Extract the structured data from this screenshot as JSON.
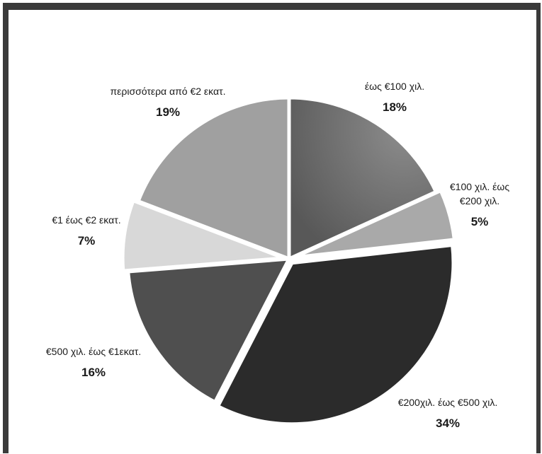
{
  "chart_data": {
    "type": "pie",
    "title": "",
    "start_angle_deg": 0,
    "direction": "clockwise",
    "slices": [
      {
        "label": "έως €100 χιλ.",
        "value": 18,
        "value_label": "18%",
        "color": "#6e6e6e",
        "explode": false
      },
      {
        "label": "€100 χιλ. έως €200 χιλ.",
        "value": 5,
        "value_label": "5%",
        "color": "#a9a9a9",
        "explode": true
      },
      {
        "label": "€200χιλ. έως €500 χιλ.",
        "value": 34,
        "value_label": "34%",
        "color": "#2b2b2b",
        "explode": true
      },
      {
        "label": "€500 χιλ. έως €1εκατ.",
        "value": 16,
        "value_label": "16%",
        "color": "#4f4f4f",
        "explode": false
      },
      {
        "label": "€1 έως €2 εκατ.",
        "value": 7,
        "value_label": "7%",
        "color": "#d8d8d8",
        "explode": true
      },
      {
        "label": "περισσότερα από €2 εκατ.",
        "value": 19,
        "value_label": "19%",
        "color": "#a0a0a0",
        "explode": false
      }
    ]
  }
}
